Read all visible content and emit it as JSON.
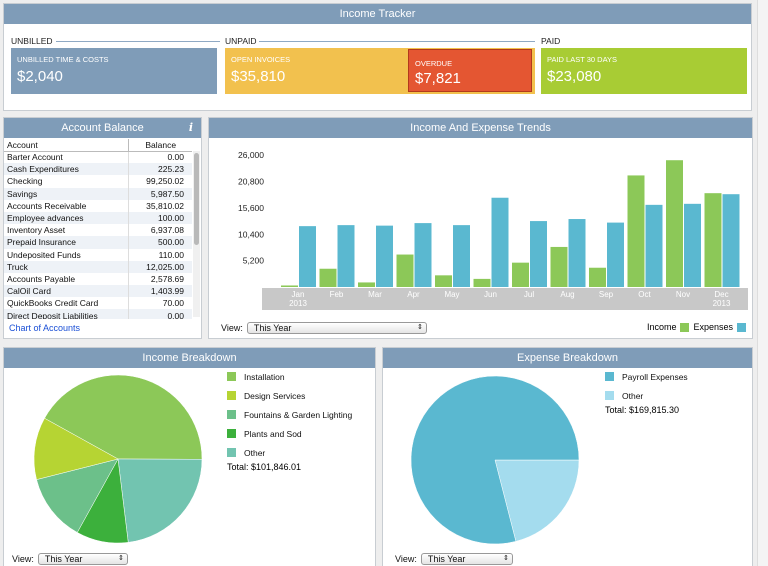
{
  "tracker": {
    "title": "Income Tracker",
    "unbilled_section": "UNBILLED",
    "unpaid_section": "UNPAID",
    "paid_section": "PAID",
    "cards": {
      "unbilled": {
        "label": "UNBILLED TIME & COSTS",
        "value": "$2,040",
        "color": "#7f9cb8"
      },
      "open": {
        "label": "OPEN INVOICES",
        "value": "$35,810",
        "color": "#f2c14e"
      },
      "overdue": {
        "label": "OVERDUE",
        "value": "$7,821",
        "color": "#e45632"
      },
      "paid": {
        "label": "PAID LAST 30 DAYS",
        "value": "$23,080",
        "color": "#a8cc34"
      }
    }
  },
  "account_balance": {
    "title": "Account Balance",
    "info_icon": "i",
    "col_account": "Account",
    "col_balance": "Balance",
    "rows": [
      {
        "name": "Barter Account",
        "balance": "0.00"
      },
      {
        "name": "Cash Expenditures",
        "balance": "225.23"
      },
      {
        "name": "Checking",
        "balance": "99,250.02"
      },
      {
        "name": "Savings",
        "balance": "5,987.50"
      },
      {
        "name": "Accounts Receivable",
        "balance": "35,810.02"
      },
      {
        "name": "Employee advances",
        "balance": "100.00"
      },
      {
        "name": "Inventory Asset",
        "balance": "6,937.08"
      },
      {
        "name": "Prepaid Insurance",
        "balance": "500.00"
      },
      {
        "name": "Undeposited Funds",
        "balance": "110.00"
      },
      {
        "name": "Truck",
        "balance": "12,025.00"
      },
      {
        "name": "Accounts Payable",
        "balance": "2,578.69"
      },
      {
        "name": "CalOil Card",
        "balance": "1,403.99"
      },
      {
        "name": "QuickBooks Credit Card",
        "balance": "70.00"
      },
      {
        "name": "Direct Deposit Liabilities",
        "balance": "0.00"
      }
    ],
    "link": "Chart of Accounts"
  },
  "trends": {
    "title": "Income And Expense Trends",
    "view_label": "View:",
    "view_value": "This Year",
    "legend_income": "Income",
    "legend_expenses": "Expenses",
    "colors": {
      "income": "#8cc858",
      "expenses": "#5ab8d0"
    }
  },
  "chart_data": {
    "type": "bar",
    "categories": [
      "Jan",
      "Feb",
      "Mar",
      "Apr",
      "May",
      "Jun",
      "Jul",
      "Aug",
      "Sep",
      "Oct",
      "Nov",
      "Dec"
    ],
    "category_year_labels": {
      "Jan": "2013",
      "Dec": "2013"
    },
    "series": [
      {
        "name": "Income",
        "values": [
          300,
          3600,
          900,
          6400,
          2300,
          1600,
          4800,
          7900,
          3800,
          22000,
          25000,
          18500
        ]
      },
      {
        "name": "Expenses",
        "values": [
          12000,
          12200,
          12100,
          12600,
          12200,
          17600,
          13000,
          13400,
          12700,
          16200,
          16400,
          18300
        ]
      }
    ],
    "yticks": [
      "26,000",
      "20,800",
      "15,600",
      "10,400",
      "5,200"
    ],
    "ylim": [
      0,
      28000
    ]
  },
  "income_breakdown": {
    "title": "Income Breakdown",
    "legend": [
      {
        "label": "Installation",
        "color": "#8cc858"
      },
      {
        "label": "Design Services",
        "color": "#b6d433"
      },
      {
        "label": "Fountains & Garden Lighting",
        "color": "#6cc08a"
      },
      {
        "label": "Plants and Sod",
        "color": "#3cb03c"
      },
      {
        "label": "Other",
        "color": "#72c4b0"
      }
    ],
    "total": "Total: $101,846.01",
    "view_label": "View:",
    "view_value": "This Year",
    "slices": [
      {
        "label": "Installation",
        "value": 42,
        "color": "#8cc858"
      },
      {
        "label": "Other",
        "value": 23,
        "color": "#72c4b0"
      },
      {
        "label": "Plants and Sod",
        "value": 10,
        "color": "#3cb03c"
      },
      {
        "label": "Fountains & Garden Lighting",
        "value": 13,
        "color": "#6cc08a"
      },
      {
        "label": "Design Services",
        "value": 12,
        "color": "#b6d433"
      }
    ]
  },
  "expense_breakdown": {
    "title": "Expense Breakdown",
    "legend": [
      {
        "label": "Payroll Expenses",
        "color": "#5ab8d0"
      },
      {
        "label": "Other",
        "color": "#a4dcee"
      }
    ],
    "total": "Total: $169,815.30",
    "view_label": "View:",
    "view_value": "This Year",
    "slices": [
      {
        "label": "Other",
        "value": 21,
        "color": "#a4dcee"
      },
      {
        "label": "Payroll Expenses",
        "value": 79,
        "color": "#5ab8d0"
      }
    ]
  }
}
